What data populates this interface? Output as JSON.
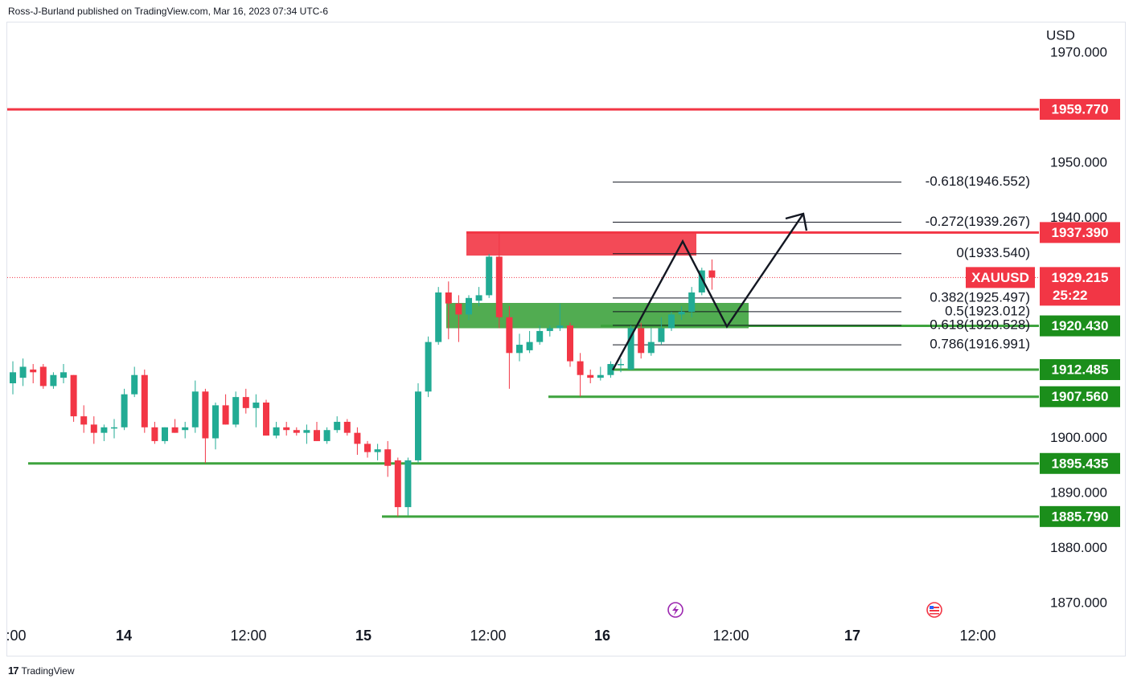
{
  "header": {
    "publisher": "Ross-J-Burland published on TradingView.com, Mar 16, 2023 07:34 UTC-6"
  },
  "footer": {
    "brand": "TradingView",
    "logo_glyph": "17"
  },
  "chart_data": {
    "type": "candlestick",
    "symbol": "XAUUSD",
    "currency": "USD",
    "ylim": [
      1867,
      1975
    ],
    "y_ticks": [
      "1970.000",
      "1950.000",
      "1940.000",
      "1900.000",
      "1890.000",
      "1880.000",
      "1870.000"
    ],
    "x_labels": [
      {
        "label": ":00",
        "bold": false
      },
      {
        "label": "14",
        "bold": true
      },
      {
        "label": "12:00",
        "bold": false
      },
      {
        "label": "15",
        "bold": true
      },
      {
        "label": "12:00",
        "bold": false
      },
      {
        "label": "16",
        "bold": true
      },
      {
        "label": "12:00",
        "bold": false
      },
      {
        "label": "17",
        "bold": true
      },
      {
        "label": "12:00",
        "bold": false
      }
    ],
    "current_price": {
      "symbol_label": "XAUUSD",
      "value": "1929.215",
      "countdown": "25:22",
      "price": 1929.215
    },
    "horizontal_levels": [
      {
        "value": 1959.77,
        "label": "1959.770",
        "color": "#f23645"
      },
      {
        "value": 1937.39,
        "label": "1937.390",
        "color": "#f23645"
      },
      {
        "value": 1920.43,
        "label": "1920.430",
        "color": "#1b8e1b"
      },
      {
        "value": 1912.485,
        "label": "1912.485",
        "color": "#1b8e1b"
      },
      {
        "value": 1907.56,
        "label": "1907.560",
        "color": "#1b8e1b"
      },
      {
        "value": 1895.435,
        "label": "1895.435",
        "color": "#1b8e1b"
      },
      {
        "value": 1885.79,
        "label": "1885.790",
        "color": "#1b8e1b"
      }
    ],
    "fibonacci_levels": [
      {
        "ratio": "-0.618",
        "value": 1946.552,
        "label": "-0.618(1946.552)"
      },
      {
        "ratio": "-0.272",
        "value": 1939.267,
        "label": "-0.272(1939.267)"
      },
      {
        "ratio": "0",
        "value": 1933.54,
        "label": "0(1933.540)"
      },
      {
        "ratio": "0.382",
        "value": 1925.497,
        "label": "0.382(1925.497)"
      },
      {
        "ratio": "0.5",
        "value": 1923.012,
        "label": "0.5(1923.012)"
      },
      {
        "ratio": "0.618",
        "value": 1920.528,
        "label": "0.618(1920.528)"
      },
      {
        "ratio": "0.786",
        "value": 1916.991,
        "label": "0.786(1916.991)"
      }
    ],
    "zones": [
      {
        "kind": "resistance",
        "top": 1937.3,
        "bottom": 1933.2,
        "color": "#f23645"
      },
      {
        "kind": "support",
        "top": 1924.6,
        "bottom": 1920.0,
        "color": "#3ea33e"
      }
    ],
    "projection_path": [
      1912.4,
      1935.8,
      1920.3,
      1940.8
    ],
    "candles": [
      {
        "o": 1910.0,
        "h": 1914.0,
        "l": 1908.0,
        "c": 1912.0
      },
      {
        "o": 1911.0,
        "h": 1914.5,
        "l": 1909.5,
        "c": 1913.0
      },
      {
        "o": 1912.5,
        "h": 1913.5,
        "l": 1910.0,
        "c": 1912.0
      },
      {
        "o": 1913.0,
        "h": 1913.5,
        "l": 1909.0,
        "c": 1909.5
      },
      {
        "o": 1909.5,
        "h": 1912.0,
        "l": 1909.0,
        "c": 1911.5
      },
      {
        "o": 1911.0,
        "h": 1913.5,
        "l": 1910.0,
        "c": 1912.0
      },
      {
        "o": 1911.5,
        "h": 1911.5,
        "l": 1903.0,
        "c": 1904.0
      },
      {
        "o": 1904.0,
        "h": 1906.0,
        "l": 1901.0,
        "c": 1902.5
      },
      {
        "o": 1902.5,
        "h": 1904.0,
        "l": 1899.0,
        "c": 1901.0
      },
      {
        "o": 1901.0,
        "h": 1902.5,
        "l": 1899.5,
        "c": 1902.0
      },
      {
        "o": 1902.0,
        "h": 1903.5,
        "l": 1900.0,
        "c": 1902.0
      },
      {
        "o": 1902.0,
        "h": 1909.0,
        "l": 1901.5,
        "c": 1908.0
      },
      {
        "o": 1908.0,
        "h": 1913.0,
        "l": 1907.5,
        "c": 1911.5
      },
      {
        "o": 1911.5,
        "h": 1912.5,
        "l": 1901.0,
        "c": 1902.0
      },
      {
        "o": 1902.0,
        "h": 1903.0,
        "l": 1899.0,
        "c": 1899.5
      },
      {
        "o": 1899.5,
        "h": 1902.0,
        "l": 1899.0,
        "c": 1902.0
      },
      {
        "o": 1902.0,
        "h": 1903.5,
        "l": 1901.0,
        "c": 1901.0
      },
      {
        "o": 1901.5,
        "h": 1903.0,
        "l": 1900.0,
        "c": 1902.0
      },
      {
        "o": 1902.0,
        "h": 1910.5,
        "l": 1901.0,
        "c": 1908.5
      },
      {
        "o": 1908.5,
        "h": 1909.0,
        "l": 1895.5,
        "c": 1900.0
      },
      {
        "o": 1900.0,
        "h": 1906.5,
        "l": 1898.0,
        "c": 1906.0
      },
      {
        "o": 1906.0,
        "h": 1908.0,
        "l": 1902.5,
        "c": 1902.5
      },
      {
        "o": 1902.5,
        "h": 1908.5,
        "l": 1902.0,
        "c": 1907.5
      },
      {
        "o": 1907.5,
        "h": 1909.0,
        "l": 1904.5,
        "c": 1905.5
      },
      {
        "o": 1905.5,
        "h": 1908.0,
        "l": 1902.0,
        "c": 1906.5
      },
      {
        "o": 1906.5,
        "h": 1907.0,
        "l": 1900.5,
        "c": 1900.5
      },
      {
        "o": 1900.5,
        "h": 1903.0,
        "l": 1900.0,
        "c": 1902.0
      },
      {
        "o": 1902.0,
        "h": 1903.0,
        "l": 1900.5,
        "c": 1901.5
      },
      {
        "o": 1901.5,
        "h": 1902.0,
        "l": 1900.5,
        "c": 1901.0
      },
      {
        "o": 1901.0,
        "h": 1902.5,
        "l": 1899.0,
        "c": 1901.5
      },
      {
        "o": 1901.5,
        "h": 1903.0,
        "l": 1899.5,
        "c": 1899.5
      },
      {
        "o": 1899.5,
        "h": 1902.0,
        "l": 1899.0,
        "c": 1901.5
      },
      {
        "o": 1901.5,
        "h": 1904.0,
        "l": 1901.0,
        "c": 1903.0
      },
      {
        "o": 1903.0,
        "h": 1903.5,
        "l": 1900.5,
        "c": 1901.0
      },
      {
        "o": 1901.0,
        "h": 1902.0,
        "l": 1897.0,
        "c": 1899.0
      },
      {
        "o": 1899.0,
        "h": 1899.5,
        "l": 1896.5,
        "c": 1897.5
      },
      {
        "o": 1897.5,
        "h": 1899.0,
        "l": 1896.0,
        "c": 1898.0
      },
      {
        "o": 1898.0,
        "h": 1899.5,
        "l": 1893.0,
        "c": 1895.0
      },
      {
        "o": 1896.0,
        "h": 1896.5,
        "l": 1885.8,
        "c": 1887.5
      },
      {
        "o": 1887.5,
        "h": 1896.5,
        "l": 1886.0,
        "c": 1896.0
      },
      {
        "o": 1896.0,
        "h": 1910.0,
        "l": 1895.5,
        "c": 1908.5
      },
      {
        "o": 1908.5,
        "h": 1918.5,
        "l": 1907.5,
        "c": 1917.5
      },
      {
        "o": 1917.5,
        "h": 1927.5,
        "l": 1917.0,
        "c": 1926.5
      },
      {
        "o": 1926.5,
        "h": 1928.5,
        "l": 1918.0,
        "c": 1924.5
      },
      {
        "o": 1924.5,
        "h": 1926.0,
        "l": 1917.5,
        "c": 1922.5
      },
      {
        "o": 1922.5,
        "h": 1926.0,
        "l": 1921.5,
        "c": 1925.5
      },
      {
        "o": 1925.0,
        "h": 1927.5,
        "l": 1924.0,
        "c": 1926.0
      },
      {
        "o": 1926.0,
        "h": 1933.5,
        "l": 1925.5,
        "c": 1933.0
      },
      {
        "o": 1933.0,
        "h": 1937.4,
        "l": 1920.0,
        "c": 1922.0
      },
      {
        "o": 1922.0,
        "h": 1924.0,
        "l": 1909.0,
        "c": 1915.5
      },
      {
        "o": 1915.5,
        "h": 1919.0,
        "l": 1914.0,
        "c": 1917.0
      },
      {
        "o": 1916.0,
        "h": 1919.5,
        "l": 1915.5,
        "c": 1917.5
      },
      {
        "o": 1917.5,
        "h": 1920.5,
        "l": 1917.0,
        "c": 1919.5
      },
      {
        "o": 1919.5,
        "h": 1920.5,
        "l": 1918.5,
        "c": 1920.0
      },
      {
        "o": 1920.0,
        "h": 1924.5,
        "l": 1919.5,
        "c": 1920.5
      },
      {
        "o": 1920.5,
        "h": 1921.0,
        "l": 1913.0,
        "c": 1914.0
      },
      {
        "o": 1914.0,
        "h": 1915.5,
        "l": 1907.6,
        "c": 1911.5
      },
      {
        "o": 1911.5,
        "h": 1912.5,
        "l": 1910.0,
        "c": 1911.0
      },
      {
        "o": 1911.0,
        "h": 1913.0,
        "l": 1910.5,
        "c": 1911.5
      },
      {
        "o": 1911.5,
        "h": 1914.0,
        "l": 1911.0,
        "c": 1913.5
      },
      {
        "o": 1913.5,
        "h": 1914.5,
        "l": 1912.0,
        "c": 1913.5
      },
      {
        "o": 1912.5,
        "h": 1920.5,
        "l": 1912.4,
        "c": 1920.0
      },
      {
        "o": 1920.0,
        "h": 1921.0,
        "l": 1914.5,
        "c": 1915.5
      },
      {
        "o": 1915.5,
        "h": 1920.0,
        "l": 1915.0,
        "c": 1917.5
      },
      {
        "o": 1917.5,
        "h": 1922.0,
        "l": 1917.0,
        "c": 1920.0
      },
      {
        "o": 1920.0,
        "h": 1923.0,
        "l": 1919.5,
        "c": 1922.5
      },
      {
        "o": 1922.5,
        "h": 1924.0,
        "l": 1921.5,
        "c": 1923.0
      },
      {
        "o": 1923.0,
        "h": 1927.5,
        "l": 1922.0,
        "c": 1926.5
      },
      {
        "o": 1926.5,
        "h": 1931.0,
        "l": 1926.0,
        "c": 1930.5
      },
      {
        "o": 1930.5,
        "h": 1932.5,
        "l": 1927.0,
        "c": 1929.2
      }
    ]
  }
}
